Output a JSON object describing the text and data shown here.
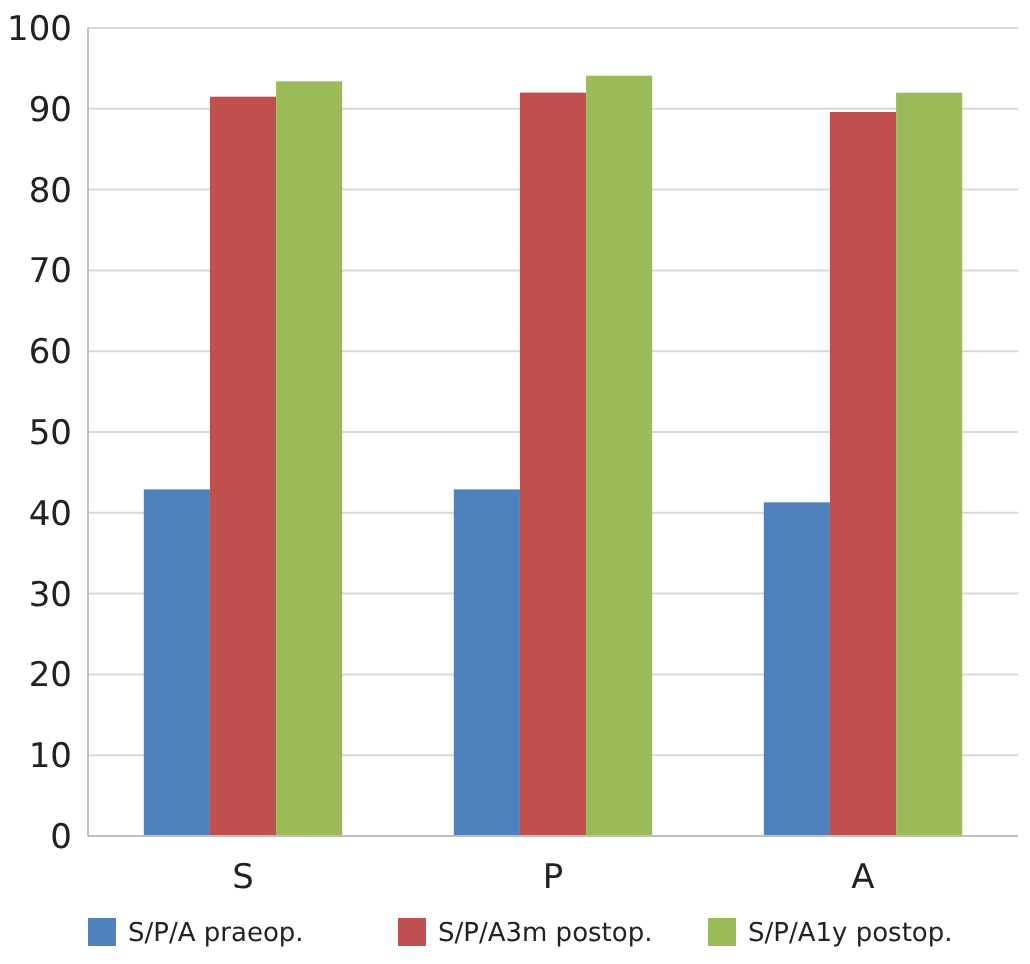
{
  "chart_data": {
    "type": "bar",
    "categories": [
      "S",
      "P",
      "A"
    ],
    "series": [
      {
        "name": "S/P/A praeop.",
        "color": "#4f81bd",
        "values": [
          42.9,
          42.9,
          41.3
        ]
      },
      {
        "name": "S/P/A3m postop.",
        "color": "#c0504d",
        "values": [
          91.5,
          92.0,
          89.6
        ]
      },
      {
        "name": "S/P/A1y postop.",
        "color": "#9bbb59",
        "values": [
          93.4,
          94.1,
          92.0
        ]
      }
    ],
    "ylim": [
      0,
      100
    ],
    "yticks": [
      0,
      10,
      20,
      30,
      40,
      50,
      60,
      70,
      80,
      90,
      100
    ],
    "grid": "y",
    "legend": "bottom"
  }
}
